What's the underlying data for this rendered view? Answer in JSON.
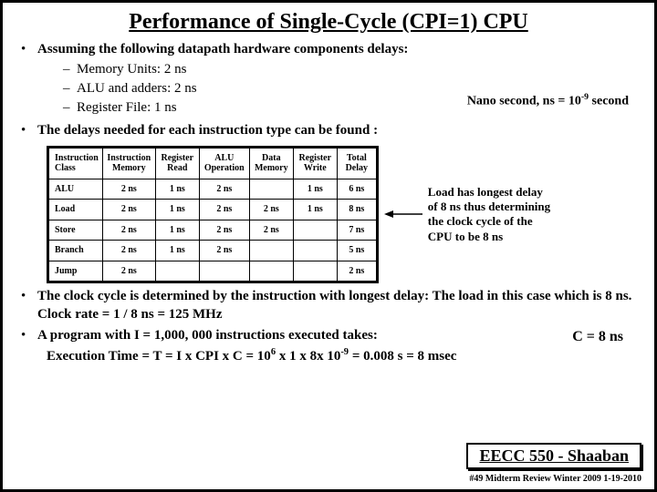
{
  "title": "Performance of Single-Cycle  (CPI=1)  CPU",
  "bullet1": "Assuming the following datapath hardware components delays:",
  "sub1": "Memory Units:  2 ns",
  "sub2": "ALU and adders:  2 ns",
  "sub3": "Register File:  1 ns",
  "nano_note_a": "Nano second, ns  =  10",
  "nano_note_sup": "-9",
  "nano_note_b": " second",
  "bullet2": "The delays needed for each instruction type can be found :",
  "table": {
    "headers": [
      "Instruction\nClass",
      "Instruction\nMemory",
      "Register\nRead",
      "ALU\nOperation",
      "Data\nMemory",
      "Register\nWrite",
      "Total\nDelay"
    ],
    "rows": [
      [
        "ALU",
        "2 ns",
        "1 ns",
        "2 ns",
        "",
        "1 ns",
        "6 ns"
      ],
      [
        "Load",
        "2 ns",
        "1 ns",
        "2 ns",
        "2 ns",
        "1 ns",
        "8 ns"
      ],
      [
        "Store",
        "2 ns",
        "1 ns",
        "2 ns",
        "2 ns",
        "",
        "7 ns"
      ],
      [
        "Branch",
        "2 ns",
        "1 ns",
        "2 ns",
        "",
        "",
        "5 ns"
      ],
      [
        "Jump",
        "2 ns",
        "",
        "",
        "",
        "",
        "2 ns"
      ]
    ]
  },
  "side_note": "Load has longest delay of 8 ns thus determining the clock cycle of the CPU to be 8 ns",
  "c_eq": "C =  8 ns",
  "bullet3": "The clock cycle is determined by the instruction with longest delay:  The load in this case which is 8 ns.   Clock rate =  1 / 8 ns  =  125 MHz",
  "bullet4": "A program with I = 1,000, 000 instructions executed takes:",
  "exec_a": "Execution Time  =  T =  I  x CPI  x C =  10",
  "exec_sup1": "6",
  "exec_b": "    x  1  x   8x 10",
  "exec_sup2": "-9",
  "exec_c": "  =  0.008 s = 8 msec",
  "footer_box": "EECC 550 - Shaaban",
  "footer_line": "#49   Midterm Review  Winter 2009  1-19-2010",
  "colors": {
    "border": "#000000",
    "bg": "#ffffff"
  }
}
